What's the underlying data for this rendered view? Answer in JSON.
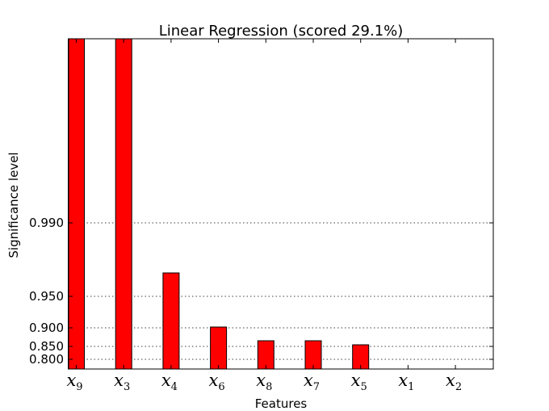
{
  "chart_data": {
    "type": "bar",
    "title": "Linear Regression (scored 29.1%)",
    "xlabel": "Features",
    "ylabel": "Significance level",
    "categories": [
      {
        "base": "x",
        "sub": "9"
      },
      {
        "base": "x",
        "sub": "3"
      },
      {
        "base": "x",
        "sub": "4"
      },
      {
        "base": "x",
        "sub": "6"
      },
      {
        "base": "x",
        "sub": "8"
      },
      {
        "base": "x",
        "sub": "7"
      },
      {
        "base": "x",
        "sub": "5"
      },
      {
        "base": "x",
        "sub": "1"
      },
      {
        "base": "x",
        "sub": "2"
      }
    ],
    "values": [
      0.999,
      0.999,
      0.97,
      0.902,
      0.867,
      0.867,
      0.855,
      0.0,
      0.0
    ],
    "yticks": [
      {
        "label": "0.800",
        "value": 0.8
      },
      {
        "label": "0.850",
        "value": 0.85
      },
      {
        "label": "0.900",
        "value": 0.9
      },
      {
        "label": "0.950",
        "value": 0.95
      },
      {
        "label": "0.990",
        "value": 0.99
      }
    ],
    "y_scale": "nonlinear (significance)",
    "grid": "horizontal dotted",
    "bar_color": "#ff0000"
  }
}
